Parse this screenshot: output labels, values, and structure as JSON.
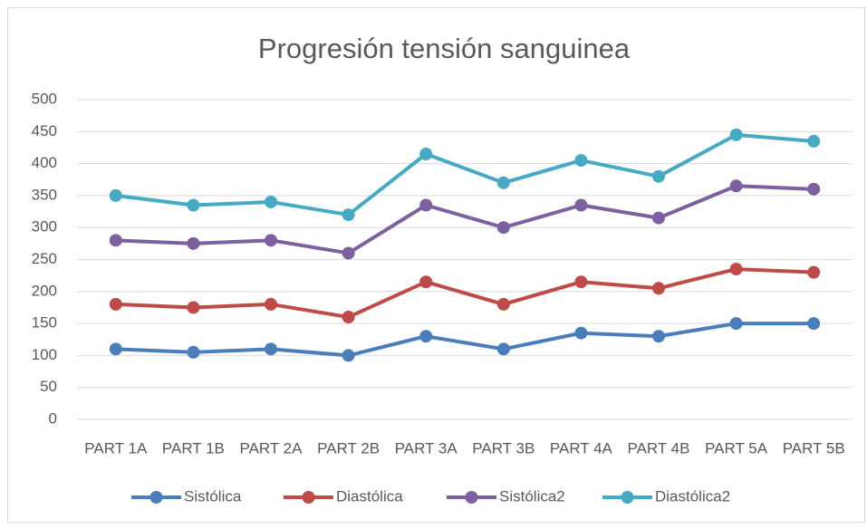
{
  "chart_data": {
    "type": "line",
    "stacked": true,
    "title": "Progresión tensión sanguinea",
    "categories": [
      "PART 1A",
      "PART 1B",
      "PART 2A",
      "PART 2B",
      "PART 3A",
      "PART 3B",
      "PART 4A",
      "PART 4B",
      "PART 5A",
      "PART 5B"
    ],
    "series": [
      {
        "name": "Sistólica",
        "color": "#4a7ebb",
        "values": [
          110,
          105,
          110,
          100,
          130,
          110,
          135,
          130,
          150,
          150
        ]
      },
      {
        "name": "Diastólica",
        "color": "#be4b48",
        "values": [
          70,
          70,
          70,
          60,
          85,
          70,
          80,
          75,
          85,
          80
        ]
      },
      {
        "name": "Sistólica2",
        "color": "#7d60a0",
        "values": [
          100,
          100,
          100,
          100,
          120,
          120,
          120,
          110,
          130,
          130
        ]
      },
      {
        "name": "Diastólica2",
        "color": "#46aac5",
        "values": [
          70,
          60,
          60,
          60,
          80,
          70,
          70,
          65,
          80,
          75
        ]
      }
    ],
    "ylim": [
      0,
      500
    ],
    "yticks": [
      0,
      50,
      100,
      150,
      200,
      250,
      300,
      350,
      400,
      450,
      500
    ],
    "grid": true,
    "legend": "bottom"
  }
}
